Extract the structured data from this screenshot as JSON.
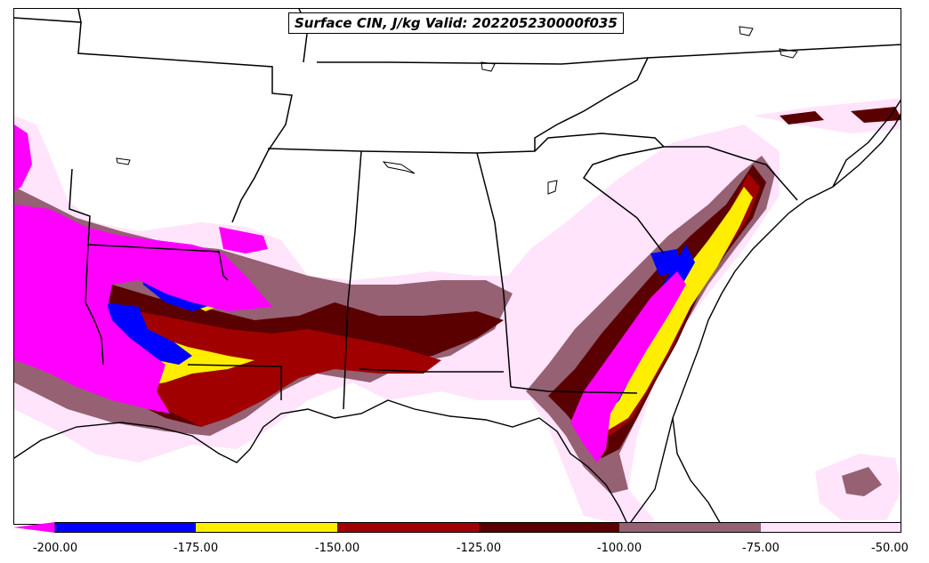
{
  "title": "Surface CIN, J/kg Valid: 202205230000f035",
  "colorbar": {
    "tick_labels": [
      "-200.00",
      "-175.00",
      "-150.00",
      "-125.00",
      "-100.00",
      "-75.00",
      "-50.00"
    ],
    "bins": [
      {
        "range": "< -200",
        "color": "#ff00ff"
      },
      {
        "range": "-200 to -175",
        "color": "#0000ff"
      },
      {
        "range": "-175 to -150",
        "color": "#ffee00"
      },
      {
        "range": "-150 to -125",
        "color": "#a00000"
      },
      {
        "range": "-125 to -100",
        "color": "#5a0000"
      },
      {
        "range": "-100 to -75",
        "color": "#956173"
      },
      {
        "range": "-75 to -50",
        "color": "#ffe4fb"
      }
    ]
  }
}
